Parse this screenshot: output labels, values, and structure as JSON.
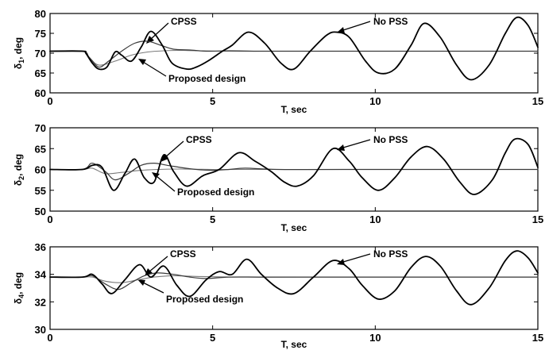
{
  "chart_data": [
    {
      "type": "line",
      "xlabel": "T, sec",
      "ylabel": "δ1, deg",
      "ylabel_main": "δ",
      "ylabel_sub": "1",
      "ylabel_rest": ", deg",
      "xlim": [
        0,
        15
      ],
      "ylim": [
        60,
        80
      ],
      "xticks": [
        0,
        5,
        10,
        15
      ],
      "yticks": [
        60,
        65,
        70,
        75,
        80
      ],
      "grid": false,
      "annotations": [
        "CPSS",
        "No PSS",
        "Proposed design"
      ],
      "series": [
        {
          "name": "No PSS",
          "x": [
            0,
            1.0,
            1.1,
            1.3,
            1.5,
            1.75,
            2.0,
            2.2,
            2.5,
            2.8,
            3.1,
            3.45,
            3.75,
            4.2,
            4.5,
            4.85,
            5.3,
            5.6,
            6.1,
            6.6,
            7.1,
            7.5,
            8.0,
            8.5,
            8.8,
            9.2,
            9.7,
            10.1,
            10.6,
            11.1,
            11.5,
            12.0,
            12.5,
            12.95,
            13.5,
            14.0,
            14.35,
            14.7,
            15.0
          ],
          "y": [
            70.5,
            70.5,
            70.0,
            67.5,
            66.0,
            66.5,
            70.3,
            69.5,
            68.0,
            71.5,
            75.5,
            72.0,
            67.5,
            66.0,
            66.5,
            68.0,
            70.5,
            72.0,
            75.3,
            72.5,
            67.5,
            66.0,
            70.5,
            74.5,
            75.3,
            74.0,
            68.0,
            65.0,
            66.0,
            72.0,
            77.5,
            74.0,
            67.0,
            63.3,
            67.0,
            75.0,
            79.0,
            77.0,
            71.5
          ]
        },
        {
          "name": "CPSS",
          "x": [
            0,
            1.0,
            1.2,
            1.5,
            1.8,
            2.2,
            2.6,
            3.0,
            3.4,
            3.8,
            4.3,
            4.8,
            5.5,
            6.5,
            8,
            10,
            15
          ],
          "y": [
            70.5,
            70.5,
            69.0,
            66.5,
            68.0,
            70.5,
            72.5,
            73.0,
            72.0,
            71.0,
            70.8,
            70.5,
            70.6,
            70.5,
            70.5,
            70.5,
            70.5
          ]
        },
        {
          "name": "Proposed design",
          "x": [
            0,
            1.0,
            1.2,
            1.5,
            2.0,
            2.5,
            3.0,
            3.5,
            4.0,
            4.5,
            5.5,
            6.5,
            8,
            10,
            15
          ],
          "y": [
            70.5,
            70.5,
            69.0,
            67.0,
            68.0,
            69.5,
            70.3,
            70.6,
            70.7,
            70.6,
            70.5,
            70.5,
            70.5,
            70.5,
            70.5
          ]
        }
      ]
    },
    {
      "type": "line",
      "xlabel": "T, sec",
      "ylabel": "δ2, deg",
      "ylabel_main": "δ",
      "ylabel_sub": "2",
      "ylabel_rest": ", deg",
      "xlim": [
        0,
        15
      ],
      "ylim": [
        50,
        70
      ],
      "xticks": [
        0,
        5,
        10,
        15
      ],
      "yticks": [
        50,
        55,
        60,
        65,
        70
      ],
      "grid": false,
      "annotations": [
        "CPSS",
        "No PSS",
        "Proposed design"
      ],
      "series": [
        {
          "name": "No PSS",
          "x": [
            0,
            1.0,
            1.3,
            1.6,
            1.95,
            2.3,
            2.6,
            2.9,
            3.2,
            3.5,
            3.8,
            4.2,
            4.7,
            5.2,
            5.8,
            6.3,
            6.8,
            7.2,
            7.6,
            8.1,
            8.7,
            9.2,
            9.6,
            10.1,
            10.6,
            11.1,
            11.6,
            12.1,
            12.6,
            13.05,
            13.6,
            14.0,
            14.3,
            14.7,
            15.0
          ],
          "y": [
            60.0,
            60.0,
            61.0,
            60.5,
            55.0,
            59.0,
            62.5,
            58.0,
            57.0,
            63.5,
            59.5,
            56.0,
            58.5,
            60.0,
            64.0,
            62.0,
            59.5,
            57.0,
            56.0,
            58.5,
            65.0,
            62.0,
            58.0,
            55.0,
            58.0,
            63.0,
            65.5,
            62.5,
            57.0,
            54.0,
            57.5,
            64.0,
            67.3,
            66.0,
            60.5
          ]
        },
        {
          "name": "CPSS",
          "x": [
            0,
            1.0,
            1.3,
            1.7,
            2.0,
            2.4,
            2.8,
            3.2,
            3.6,
            4.0,
            4.5,
            5.0,
            5.5,
            6.0,
            7,
            9,
            15
          ],
          "y": [
            60.0,
            60.0,
            61.5,
            59.5,
            57.5,
            59.0,
            61.0,
            61.5,
            61.0,
            60.5,
            60.0,
            59.8,
            60.0,
            60.3,
            60.0,
            60.0,
            60.0
          ]
        },
        {
          "name": "Proposed design",
          "x": [
            0,
            1.0,
            1.3,
            1.7,
            2.2,
            2.8,
            3.3,
            4.0,
            5.0,
            6.0,
            8,
            10,
            15
          ],
          "y": [
            60.0,
            60.0,
            60.3,
            59.0,
            59.3,
            59.8,
            60.0,
            60.1,
            60.0,
            60.0,
            60.0,
            60.0,
            60.0
          ]
        }
      ]
    },
    {
      "type": "line",
      "xlabel": "T, sec",
      "ylabel": "δ4, deg",
      "ylabel_main": "δ",
      "ylabel_sub": "4",
      "ylabel_rest": ", deg",
      "xlim": [
        0,
        15
      ],
      "ylim": [
        30,
        36
      ],
      "xticks": [
        0,
        5,
        10,
        15
      ],
      "yticks": [
        30,
        32,
        34,
        36
      ],
      "grid": false,
      "annotations": [
        "CPSS",
        "No PSS",
        "Proposed design"
      ],
      "series": [
        {
          "name": "No PSS",
          "x": [
            0,
            1.0,
            1.3,
            1.6,
            1.9,
            2.3,
            2.75,
            3.1,
            3.5,
            3.9,
            4.3,
            4.8,
            5.2,
            5.6,
            6.05,
            6.5,
            7.0,
            7.5,
            8.1,
            8.7,
            9.2,
            9.6,
            10.1,
            10.6,
            11.1,
            11.55,
            12.0,
            12.5,
            12.95,
            13.5,
            14.0,
            14.35,
            14.7,
            15.0
          ],
          "y": [
            33.8,
            33.8,
            34.0,
            33.3,
            32.6,
            33.6,
            34.7,
            33.8,
            34.6,
            33.2,
            32.4,
            33.6,
            34.2,
            34.0,
            35.1,
            34.0,
            33.0,
            32.6,
            33.8,
            35.0,
            34.4,
            33.2,
            32.2,
            32.8,
            34.5,
            35.3,
            34.6,
            32.8,
            31.8,
            33.0,
            35.0,
            35.7,
            35.2,
            34.1
          ]
        },
        {
          "name": "CPSS",
          "x": [
            0,
            1.0,
            1.3,
            1.7,
            2.1,
            2.5,
            2.9,
            3.3,
            3.8,
            4.3,
            4.8,
            5.5,
            6.5,
            8,
            15
          ],
          "y": [
            33.8,
            33.8,
            33.9,
            33.3,
            32.9,
            33.4,
            33.9,
            34.1,
            34.0,
            33.8,
            33.7,
            33.8,
            33.8,
            33.8,
            33.8
          ]
        },
        {
          "name": "Proposed design",
          "x": [
            0,
            1.0,
            1.3,
            1.7,
            2.2,
            2.7,
            3.2,
            3.8,
            4.5,
            6.0,
            8,
            15
          ],
          "y": [
            33.8,
            33.8,
            33.8,
            33.5,
            33.4,
            33.6,
            33.8,
            33.9,
            33.85,
            33.8,
            33.8,
            33.8
          ]
        }
      ]
    }
  ]
}
